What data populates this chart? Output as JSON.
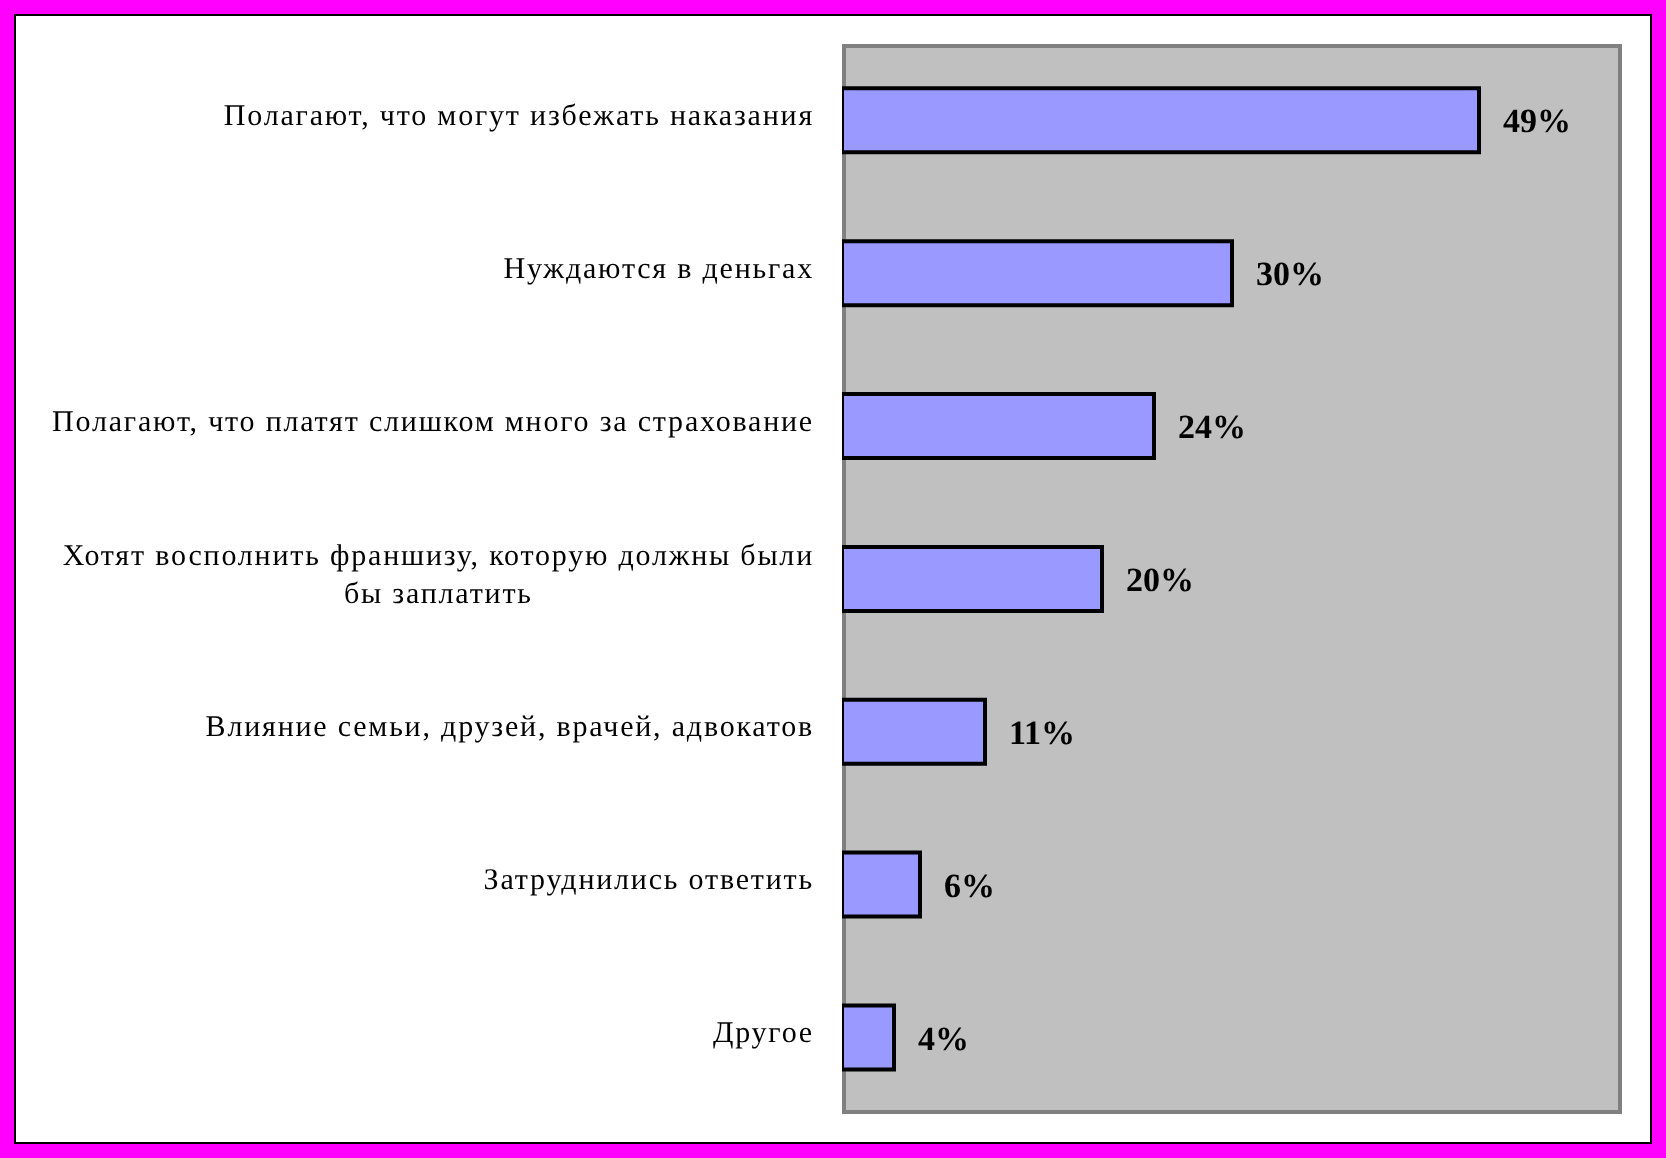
{
  "chart_data": {
    "type": "bar",
    "orientation": "horizontal",
    "categories": [
      "Полагают, что могут избежать наказания",
      "Нуждаются в деньгах",
      "Полагают, что платят слишком много за страхование",
      "Хотят восполнить франшизу, которую должны были бы заплатить",
      "Влияние семьи, друзей, врачей, адвокатов",
      "Затруднились ответить",
      "Другое"
    ],
    "values": [
      49,
      30,
      24,
      20,
      11,
      6,
      4
    ],
    "color": "#9999ff",
    "value_labels": [
      "49%",
      "30%",
      "24%",
      "20%",
      "11%",
      "6%",
      "4%"
    ],
    "tick_labels": "y",
    "grid": false
  }
}
